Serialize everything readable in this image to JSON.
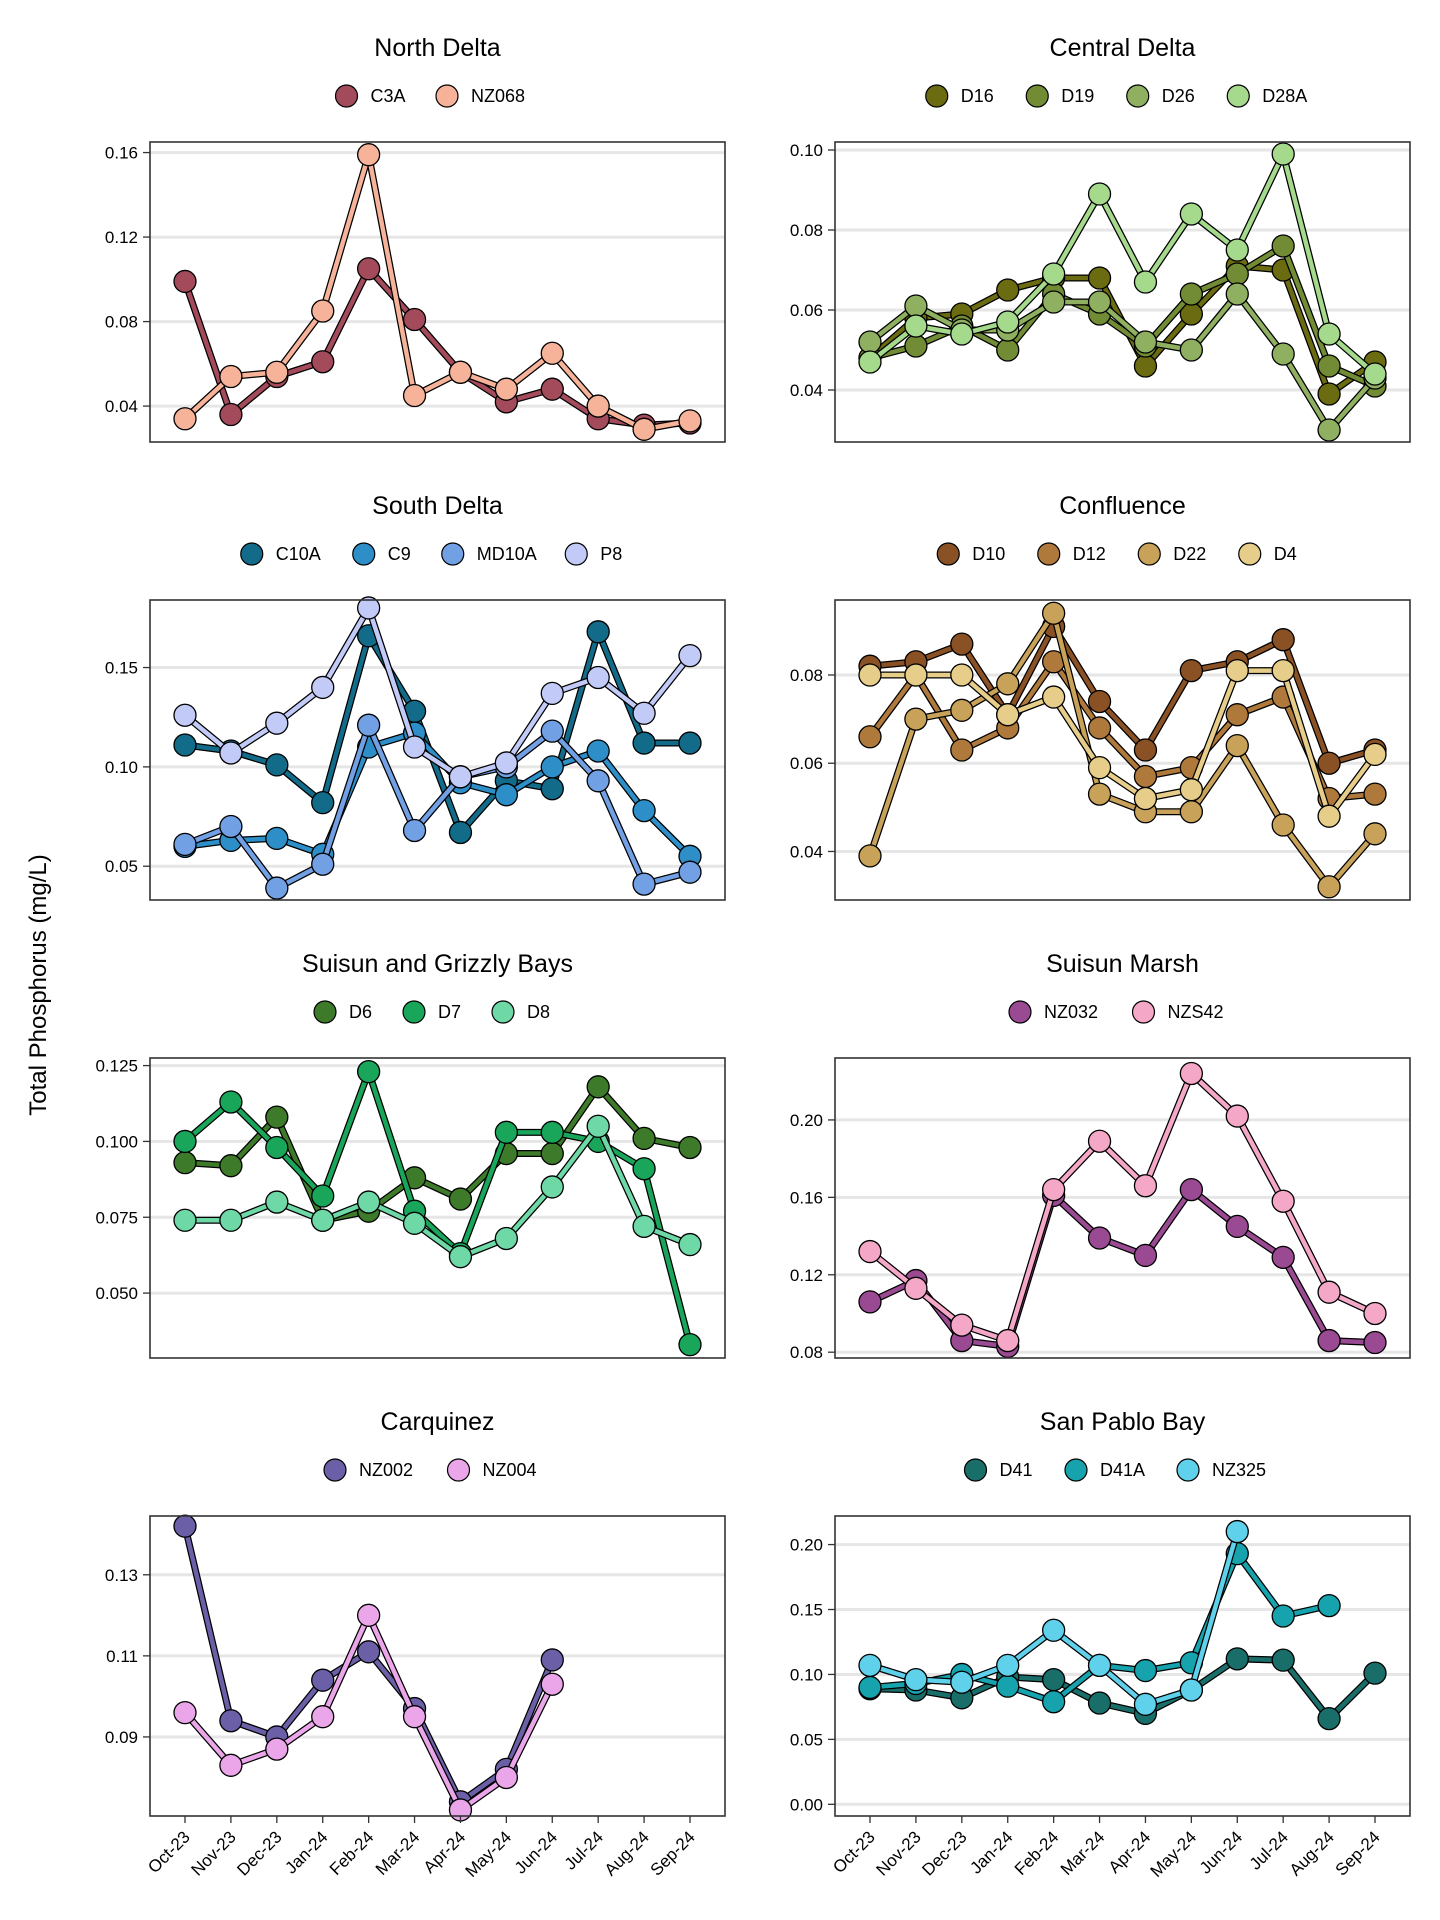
{
  "figure": {
    "ylabel": "Total Phosphorus (mg/L)"
  },
  "months": [
    "Oct-23",
    "Nov-23",
    "Dec-23",
    "Jan-24",
    "Feb-24",
    "Mar-24",
    "Apr-24",
    "May-24",
    "Jun-24",
    "Jul-24",
    "Aug-24",
    "Sep-24"
  ],
  "chart_data": [
    {
      "type": "line",
      "title": "North Delta",
      "ylim": [
        0.023,
        0.165
      ],
      "yticks": [
        0.04,
        0.08,
        0.12,
        0.16
      ],
      "tick_decimals": 2,
      "grid": true,
      "legend_position": "top",
      "series": [
        {
          "name": "C3A",
          "color": "#a34a5b",
          "values": [
            0.099,
            0.036,
            0.054,
            0.061,
            0.105,
            0.081,
            0.056,
            0.042,
            0.048,
            0.034,
            0.031,
            0.032
          ]
        },
        {
          "name": "NZ068",
          "color": "#f6b39a",
          "values": [
            0.034,
            0.054,
            0.056,
            0.085,
            0.159,
            0.045,
            0.056,
            0.048,
            0.065,
            0.04,
            0.029,
            0.033
          ]
        }
      ]
    },
    {
      "type": "line",
      "title": "Central Delta",
      "ylim": [
        0.027,
        0.102
      ],
      "yticks": [
        0.04,
        0.06,
        0.08,
        0.1
      ],
      "tick_decimals": 2,
      "grid": true,
      "legend_position": "top",
      "series": [
        {
          "name": "D16",
          "color": "#6b6b12",
          "values": [
            0.048,
            0.058,
            0.059,
            0.065,
            0.068,
            0.068,
            0.046,
            0.059,
            0.071,
            0.07,
            0.039,
            0.047
          ]
        },
        {
          "name": "D19",
          "color": "#718c34",
          "values": [
            0.048,
            0.051,
            0.056,
            0.05,
            0.064,
            0.059,
            0.051,
            0.064,
            0.069,
            0.076,
            0.046,
            0.041
          ]
        },
        {
          "name": "D26",
          "color": "#8fb060",
          "values": [
            0.052,
            0.061,
            0.055,
            0.055,
            0.062,
            0.062,
            0.052,
            0.05,
            0.064,
            0.049,
            0.03,
            0.043
          ]
        },
        {
          "name": "D28A",
          "color": "#a5d98c",
          "values": [
            0.047,
            0.056,
            0.054,
            0.057,
            0.069,
            0.089,
            0.067,
            0.084,
            0.075,
            0.099,
            0.054,
            0.044
          ]
        }
      ]
    },
    {
      "type": "line",
      "title": "South Delta",
      "ylim": [
        0.033,
        0.184
      ],
      "yticks": [
        0.05,
        0.1,
        0.15
      ],
      "tick_decimals": 2,
      "grid": true,
      "legend_position": "top",
      "series": [
        {
          "name": "C10A",
          "color": "#136b8a",
          "values": [
            0.111,
            0.108,
            0.101,
            0.082,
            0.166,
            0.128,
            0.067,
            0.093,
            0.089,
            0.168,
            0.112,
            0.112
          ]
        },
        {
          "name": "C9",
          "color": "#2d8ec8",
          "values": [
            0.06,
            0.063,
            0.064,
            0.056,
            0.11,
            0.117,
            0.092,
            0.086,
            0.1,
            0.108,
            0.078,
            0.055
          ]
        },
        {
          "name": "MD10A",
          "color": "#72a0e4",
          "values": [
            0.061,
            0.07,
            0.039,
            0.051,
            0.121,
            0.068,
            0.095,
            0.1,
            0.118,
            0.093,
            0.041,
            0.047
          ]
        },
        {
          "name": "P8",
          "color": "#c2cbf8",
          "values": [
            0.126,
            0.107,
            0.122,
            0.14,
            0.18,
            0.11,
            0.095,
            0.102,
            0.137,
            0.145,
            0.127,
            0.156
          ]
        }
      ]
    },
    {
      "type": "line",
      "title": "Confluence",
      "ylim": [
        0.029,
        0.097
      ],
      "yticks": [
        0.04,
        0.06,
        0.08
      ],
      "tick_decimals": 2,
      "grid": true,
      "legend_position": "top",
      "series": [
        {
          "name": "D10",
          "color": "#8a5124",
          "values": [
            0.082,
            0.083,
            0.087,
            0.071,
            0.091,
            0.074,
            0.063,
            0.081,
            0.083,
            0.088,
            0.06,
            0.063
          ]
        },
        {
          "name": "D12",
          "color": "#b0793c",
          "values": [
            0.066,
            0.08,
            0.063,
            0.068,
            0.083,
            0.068,
            0.057,
            0.059,
            0.071,
            0.075,
            0.052,
            0.053
          ]
        },
        {
          "name": "D22",
          "color": "#c9a25a",
          "values": [
            0.039,
            0.07,
            0.072,
            0.078,
            0.094,
            0.053,
            0.049,
            0.049,
            0.064,
            0.046,
            0.032,
            0.044
          ]
        },
        {
          "name": "D4",
          "color": "#e6cd8a",
          "values": [
            0.08,
            0.08,
            0.08,
            0.071,
            0.075,
            0.059,
            0.052,
            0.054,
            0.081,
            0.081,
            0.048,
            0.062
          ]
        }
      ]
    },
    {
      "type": "line",
      "title": "Suisun and Grizzly Bays",
      "ylim": [
        0.0286,
        0.1275
      ],
      "yticks": [
        0.05,
        0.075,
        0.1,
        0.125
      ],
      "tick_decimals": 3,
      "grid": true,
      "legend_position": "top",
      "series": [
        {
          "name": "D6",
          "color": "#3d7a2a",
          "values": [
            0.093,
            0.092,
            0.108,
            0.074,
            0.077,
            0.088,
            0.081,
            0.096,
            0.096,
            0.118,
            0.101,
            0.098
          ]
        },
        {
          "name": "D7",
          "color": "#19a65a",
          "values": [
            0.1,
            0.113,
            0.098,
            0.082,
            0.123,
            0.077,
            0.063,
            0.103,
            0.103,
            0.1,
            0.091,
            0.033
          ]
        },
        {
          "name": "D8",
          "color": "#6ed8a6",
          "values": [
            0.074,
            0.074,
            0.08,
            0.074,
            0.08,
            0.073,
            0.062,
            0.068,
            0.085,
            0.105,
            0.072,
            0.066
          ]
        }
      ]
    },
    {
      "type": "line",
      "title": "Suisun Marsh",
      "ylim": [
        0.077,
        0.232
      ],
      "yticks": [
        0.08,
        0.12,
        0.16,
        0.2
      ],
      "tick_decimals": 2,
      "grid": true,
      "legend_position": "top",
      "series": [
        {
          "name": "NZ032",
          "color": "#9a4a92",
          "values": [
            0.106,
            0.117,
            0.086,
            0.083,
            0.161,
            0.139,
            0.13,
            0.164,
            0.145,
            0.129,
            0.086,
            0.085
          ]
        },
        {
          "name": "NZS42",
          "color": "#f4a7c6",
          "values": [
            0.132,
            0.113,
            0.094,
            0.086,
            0.164,
            0.189,
            0.166,
            0.224,
            0.202,
            0.158,
            0.111,
            0.1
          ]
        }
      ]
    },
    {
      "type": "line",
      "title": "Carquinez",
      "ylim": [
        0.0705,
        0.1445
      ],
      "yticks": [
        0.09,
        0.11,
        0.13
      ],
      "tick_decimals": 2,
      "grid": true,
      "legend_position": "top",
      "series": [
        {
          "name": "NZ002",
          "color": "#6b60a8",
          "values": [
            0.142,
            0.094,
            0.09,
            0.104,
            0.111,
            0.097,
            0.074,
            0.082,
            0.109,
            null,
            null,
            null
          ]
        },
        {
          "name": "NZ004",
          "color": "#eba6ea",
          "values": [
            0.096,
            0.083,
            0.087,
            0.095,
            0.12,
            0.095,
            0.072,
            0.08,
            0.103,
            null,
            null,
            null
          ]
        }
      ]
    },
    {
      "type": "line",
      "title": "San Pablo Bay",
      "ylim": [
        -0.009,
        0.222
      ],
      "yticks": [
        0.0,
        0.05,
        0.1,
        0.15,
        0.2
      ],
      "tick_decimals": 2,
      "grid": true,
      "legend_position": "top",
      "series": [
        {
          "name": "D41",
          "color": "#1a6e6a",
          "values": [
            0.089,
            0.088,
            0.082,
            0.098,
            0.096,
            0.078,
            0.07,
            0.088,
            0.112,
            0.111,
            0.066,
            0.101
          ]
        },
        {
          "name": "D41A",
          "color": "#17a3ae",
          "values": [
            0.09,
            0.093,
            0.1,
            0.091,
            0.079,
            0.107,
            0.103,
            0.109,
            0.193,
            0.145,
            0.153,
            null
          ]
        },
        {
          "name": "NZ325",
          "color": "#5fd1ea",
          "values": [
            0.107,
            0.096,
            0.094,
            0.107,
            0.134,
            0.107,
            0.077,
            0.088,
            0.21,
            null,
            null,
            null
          ]
        }
      ]
    }
  ]
}
